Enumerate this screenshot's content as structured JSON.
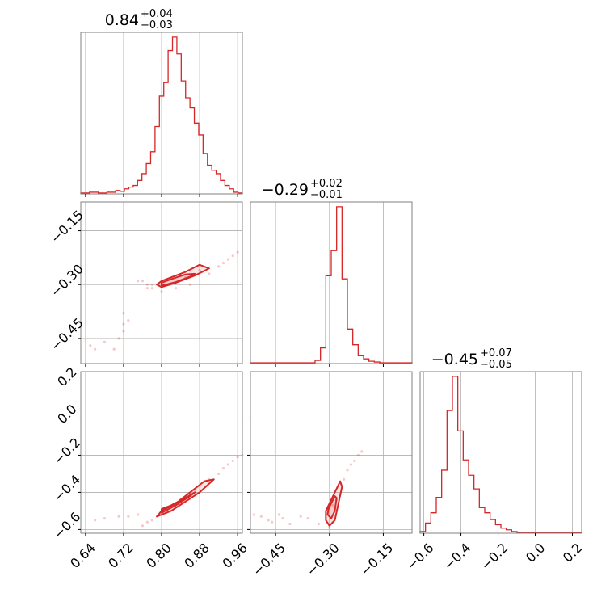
{
  "chart_data": {
    "type": "corner",
    "color": "#d62728",
    "grid": true,
    "parameters": [
      {
        "title": {
          "median": "0.84",
          "plus": "+0.04",
          "minus": "−0.03"
        },
        "range": [
          0.63,
          0.97
        ],
        "ticks": [
          0.64,
          0.72,
          0.8,
          0.88,
          0.96
        ],
        "tick_labels": [
          "0.64",
          "0.72",
          "0.80",
          "0.88",
          "0.96"
        ],
        "histogram": [
          0.005,
          0.005,
          0.01,
          0.01,
          0.005,
          0.005,
          0.01,
          0.01,
          0.02,
          0.015,
          0.03,
          0.04,
          0.05,
          0.08,
          0.12,
          0.18,
          0.25,
          0.4,
          0.58,
          0.66,
          0.85,
          0.93,
          0.83,
          0.67,
          0.57,
          0.51,
          0.42,
          0.35,
          0.24,
          0.17,
          0.14,
          0.12,
          0.08,
          0.05,
          0.03,
          0.01,
          0.005
        ]
      },
      {
        "title": {
          "median": "−0.29",
          "plus": "+0.02",
          "minus": "−0.01"
        },
        "range": [
          -0.52,
          -0.07
        ],
        "ticks": [
          -0.45,
          -0.3,
          -0.15
        ],
        "tick_labels": [
          "−0.45",
          "−0.30",
          "−0.15"
        ],
        "histogram": [
          0.005,
          0.005,
          0.005,
          0.005,
          0.005,
          0.005,
          0.005,
          0.005,
          0.005,
          0.005,
          0.005,
          0.005,
          0.02,
          0.1,
          0.56,
          0.72,
          1.0,
          0.54,
          0.22,
          0.12,
          0.05,
          0.03,
          0.015,
          0.01,
          0.005,
          0.005,
          0.005,
          0.005,
          0.005,
          0.005
        ]
      },
      {
        "title": {
          "median": "−0.45",
          "plus": "+0.07",
          "minus": "−0.05"
        },
        "range": [
          -0.62,
          0.25
        ],
        "ticks": [
          -0.6,
          -0.4,
          -0.2,
          0.0,
          0.2
        ],
        "tick_labels": [
          "−0.6",
          "−0.4",
          "−0.2",
          "0.0",
          "0.2"
        ],
        "histogram": [
          0.01,
          0.06,
          0.12,
          0.21,
          0.37,
          0.72,
          0.92,
          0.6,
          0.43,
          0.34,
          0.26,
          0.15,
          0.12,
          0.08,
          0.05,
          0.03,
          0.02,
          0.01,
          0.005,
          0.005,
          0.005,
          0.005,
          0.005,
          0.005,
          0.005,
          0.005,
          0.005,
          0.005,
          0.005,
          0.005
        ]
      }
    ],
    "pairs": [
      {
        "x": 0,
        "y": 1,
        "contours": [
          [
            [
              0.79,
              -0.3
            ],
            [
              0.8,
              -0.307
            ],
            [
              0.83,
              -0.295
            ],
            [
              0.87,
              -0.275
            ],
            [
              0.9,
              -0.255
            ],
            [
              0.88,
              -0.245
            ],
            [
              0.85,
              -0.265
            ],
            [
              0.82,
              -0.28
            ],
            [
              0.8,
              -0.29
            ]
          ],
          [
            [
              0.8,
              -0.303
            ],
            [
              0.83,
              -0.293
            ],
            [
              0.86,
              -0.278
            ],
            [
              0.87,
              -0.27
            ],
            [
              0.85,
              -0.272
            ],
            [
              0.82,
              -0.285
            ],
            [
              0.8,
              -0.295
            ]
          ]
        ],
        "points": [
          [
            0.65,
            -0.47
          ],
          [
            0.66,
            -0.48
          ],
          [
            0.68,
            -0.46
          ],
          [
            0.7,
            -0.48
          ],
          [
            0.71,
            -0.45
          ],
          [
            0.72,
            -0.43
          ],
          [
            0.72,
            -0.41
          ],
          [
            0.73,
            -0.4
          ],
          [
            0.72,
            -0.38
          ],
          [
            0.75,
            -0.29
          ],
          [
            0.76,
            -0.29
          ],
          [
            0.77,
            -0.3
          ],
          [
            0.78,
            -0.31
          ],
          [
            0.77,
            -0.31
          ],
          [
            0.78,
            -0.3
          ],
          [
            0.8,
            -0.32
          ],
          [
            0.83,
            -0.31
          ],
          [
            0.86,
            -0.3
          ],
          [
            0.9,
            -0.27
          ],
          [
            0.92,
            -0.25
          ],
          [
            0.93,
            -0.24
          ],
          [
            0.94,
            -0.23
          ],
          [
            0.95,
            -0.22
          ],
          [
            0.96,
            -0.21
          ],
          [
            0.85,
            -0.28
          ],
          [
            0.88,
            -0.26
          ]
        ]
      },
      {
        "x": 0,
        "y": 2,
        "contours": [
          [
            [
              0.79,
              -0.53
            ],
            [
              0.82,
              -0.5
            ],
            [
              0.85,
              -0.45
            ],
            [
              0.88,
              -0.4
            ],
            [
              0.91,
              -0.33
            ],
            [
              0.89,
              -0.34
            ],
            [
              0.86,
              -0.4
            ],
            [
              0.83,
              -0.46
            ],
            [
              0.8,
              -0.5
            ]
          ],
          [
            [
              0.8,
              -0.51
            ],
            [
              0.83,
              -0.47
            ],
            [
              0.86,
              -0.42
            ],
            [
              0.87,
              -0.4
            ],
            [
              0.85,
              -0.43
            ],
            [
              0.82,
              -0.47
            ],
            [
              0.8,
              -0.49
            ]
          ]
        ],
        "points": [
          [
            0.66,
            -0.55
          ],
          [
            0.68,
            -0.54
          ],
          [
            0.71,
            -0.53
          ],
          [
            0.73,
            -0.53
          ],
          [
            0.75,
            -0.52
          ],
          [
            0.77,
            -0.56
          ],
          [
            0.76,
            -0.58
          ],
          [
            0.78,
            -0.55
          ],
          [
            0.81,
            -0.51
          ],
          [
            0.84,
            -0.44
          ],
          [
            0.87,
            -0.39
          ],
          [
            0.9,
            -0.33
          ],
          [
            0.92,
            -0.3
          ],
          [
            0.93,
            -0.27
          ],
          [
            0.94,
            -0.25
          ],
          [
            0.95,
            -0.23
          ],
          [
            0.96,
            -0.21
          ],
          [
            0.97,
            -0.2
          ],
          [
            0.83,
            -0.48
          ],
          [
            0.86,
            -0.41
          ]
        ]
      },
      {
        "x": 1,
        "y": 2,
        "contours": [
          [
            [
              -0.31,
              -0.55
            ],
            [
              -0.3,
              -0.58
            ],
            [
              -0.285,
              -0.55
            ],
            [
              -0.275,
              -0.46
            ],
            [
              -0.265,
              -0.37
            ],
            [
              -0.27,
              -0.34
            ],
            [
              -0.285,
              -0.4
            ],
            [
              -0.3,
              -0.46
            ],
            [
              -0.31,
              -0.5
            ]
          ],
          [
            [
              -0.305,
              -0.52
            ],
            [
              -0.295,
              -0.54
            ],
            [
              -0.285,
              -0.5
            ],
            [
              -0.28,
              -0.43
            ],
            [
              -0.285,
              -0.42
            ],
            [
              -0.295,
              -0.46
            ],
            [
              -0.303,
              -0.49
            ]
          ]
        ],
        "points": [
          [
            -0.51,
            -0.52
          ],
          [
            -0.49,
            -0.53
          ],
          [
            -0.47,
            -0.55
          ],
          [
            -0.46,
            -0.56
          ],
          [
            -0.44,
            -0.52
          ],
          [
            -0.43,
            -0.54
          ],
          [
            -0.41,
            -0.57
          ],
          [
            -0.38,
            -0.53
          ],
          [
            -0.36,
            -0.54
          ],
          [
            -0.33,
            -0.57
          ],
          [
            -0.3,
            -0.59
          ],
          [
            -0.29,
            -0.56
          ],
          [
            -0.27,
            -0.41
          ],
          [
            -0.26,
            -0.33
          ],
          [
            -0.25,
            -0.28
          ],
          [
            -0.24,
            -0.25
          ],
          [
            -0.23,
            -0.23
          ],
          [
            -0.22,
            -0.2
          ],
          [
            -0.21,
            -0.18
          ],
          [
            -0.29,
            -0.47
          ],
          [
            -0.28,
            -0.44
          ]
        ]
      }
    ]
  }
}
